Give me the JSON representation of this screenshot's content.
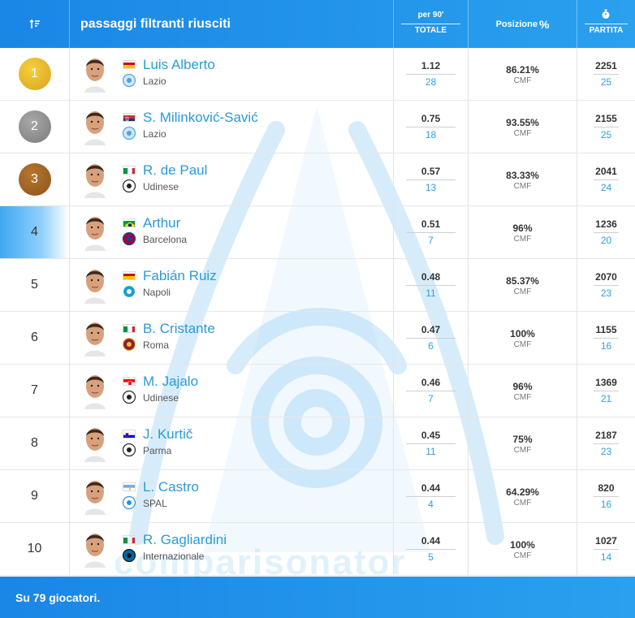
{
  "header": {
    "title": "passaggi filtranti riusciti",
    "per90_top": "per 90'",
    "per90_bottom": "TOTALE",
    "position_label": "Posizione",
    "position_glyph": "%",
    "matches_label": "PARTITA"
  },
  "rows": [
    {
      "rank": "1",
      "name": "Luis Alberto",
      "club": "Lazio",
      "flag": "spain",
      "per90": "1.12",
      "total": "28",
      "pct": "86.21%",
      "role": "CMF",
      "minutes": "2251",
      "matches": "25",
      "medal": "gold"
    },
    {
      "rank": "2",
      "name": "S. Milinković-Savić",
      "club": "Lazio",
      "flag": "serbia",
      "per90": "0.75",
      "total": "18",
      "pct": "93.55%",
      "role": "CMF",
      "minutes": "2155",
      "matches": "25",
      "medal": "silver"
    },
    {
      "rank": "3",
      "name": "R. de Paul",
      "club": "Udinese",
      "flag": "italy",
      "per90": "0.57",
      "total": "13",
      "pct": "83.33%",
      "role": "CMF",
      "minutes": "2041",
      "matches": "24",
      "medal": "bronze"
    },
    {
      "rank": "4",
      "name": "Arthur",
      "club": "Barcelona",
      "flag": "brazil",
      "per90": "0.51",
      "total": "7",
      "pct": "96%",
      "role": "CMF",
      "minutes": "1236",
      "matches": "20"
    },
    {
      "rank": "5",
      "name": "Fabián Ruiz",
      "club": "Napoli",
      "flag": "spain",
      "per90": "0.48",
      "total": "11",
      "pct": "85.37%",
      "role": "CMF",
      "minutes": "2070",
      "matches": "23"
    },
    {
      "rank": "6",
      "name": "B. Cristante",
      "club": "Roma",
      "flag": "italy",
      "per90": "0.47",
      "total": "6",
      "pct": "100%",
      "role": "CMF",
      "minutes": "1155",
      "matches": "16"
    },
    {
      "rank": "7",
      "name": "M. Jajalo",
      "club": "Udinese",
      "flag": "croatia",
      "per90": "0.46",
      "total": "7",
      "pct": "96%",
      "role": "CMF",
      "minutes": "1369",
      "matches": "21"
    },
    {
      "rank": "8",
      "name": "J. Kurtič",
      "club": "Parma",
      "flag": "slovenia",
      "per90": "0.45",
      "total": "11",
      "pct": "75%",
      "role": "CMF",
      "minutes": "2187",
      "matches": "23"
    },
    {
      "rank": "9",
      "name": "L. Castro",
      "club": "SPAL",
      "flag": "argentina",
      "per90": "0.44",
      "total": "4",
      "pct": "64.29%",
      "role": "CMF",
      "minutes": "820",
      "matches": "16"
    },
    {
      "rank": "10",
      "name": "R. Gagliardini",
      "club": "Internazionale",
      "flag": "italy",
      "per90": "0.44",
      "total": "5",
      "pct": "100%",
      "role": "CMF",
      "minutes": "1027",
      "matches": "14"
    }
  ],
  "watermark": "comparisonator",
  "footer": {
    "text": "Su 79 giocatori."
  },
  "colors": {
    "accent": "#1a86e6",
    "name": "#2a9ad8",
    "value_blue": "#2aa0e6"
  }
}
